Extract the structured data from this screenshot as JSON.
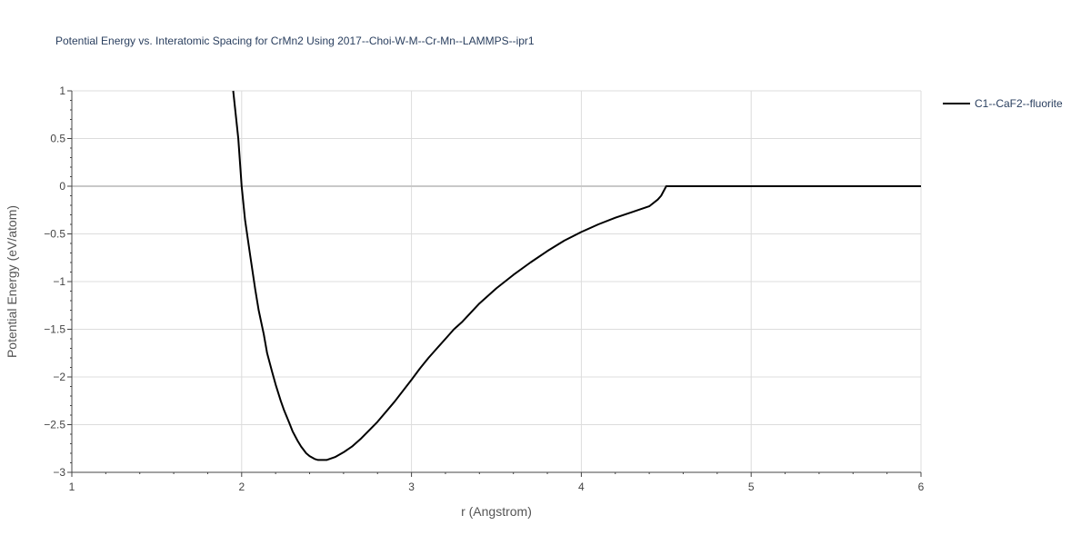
{
  "chart_data": {
    "type": "line",
    "title": "Potential Energy vs. Interatomic Spacing for CrMn2 Using 2017--Choi-W-M--Cr-Mn--LAMMPS--ipr1",
    "xlabel": "r (Angstrom)",
    "ylabel": "Potential Energy (eV/atom)",
    "xlim": [
      1,
      6
    ],
    "ylim": [
      -3,
      1
    ],
    "x_ticks": [
      "1",
      "2",
      "3",
      "4",
      "5",
      "6"
    ],
    "y_ticks": [
      "1",
      "0.5",
      "0",
      "−0.5",
      "−1",
      "−1.5",
      "−2",
      "−2.5",
      "−3"
    ],
    "y_tick_values": [
      1,
      0.5,
      0,
      -0.5,
      -1,
      -1.5,
      -2,
      -2.5,
      -3
    ],
    "grid": true,
    "legend_position": "top-right",
    "series": [
      {
        "name": "C1--CaF2--fluorite",
        "color": "#000000",
        "x": [
          1.95,
          1.98,
          2.0,
          2.02,
          2.05,
          2.08,
          2.1,
          2.13,
          2.15,
          2.18,
          2.2,
          2.23,
          2.25,
          2.28,
          2.3,
          2.33,
          2.35,
          2.38,
          2.4,
          2.43,
          2.45,
          2.48,
          2.5,
          2.55,
          2.6,
          2.65,
          2.7,
          2.8,
          2.9,
          3.0,
          3.05,
          3.1,
          3.15,
          3.2,
          3.25,
          3.3,
          3.4,
          3.5,
          3.6,
          3.7,
          3.8,
          3.9,
          4.0,
          4.1,
          4.2,
          4.3,
          4.4,
          4.45,
          4.47,
          4.5,
          4.6,
          5.0,
          5.5,
          6.0
        ],
        "y": [
          1.0,
          0.5,
          0.0,
          -0.35,
          -0.72,
          -1.08,
          -1.3,
          -1.55,
          -1.75,
          -1.95,
          -2.08,
          -2.25,
          -2.35,
          -2.48,
          -2.57,
          -2.67,
          -2.73,
          -2.8,
          -2.83,
          -2.86,
          -2.87,
          -2.87,
          -2.87,
          -2.84,
          -2.79,
          -2.73,
          -2.65,
          -2.47,
          -2.26,
          -2.03,
          -1.91,
          -1.8,
          -1.7,
          -1.6,
          -1.5,
          -1.42,
          -1.23,
          -1.07,
          -0.93,
          -0.8,
          -0.68,
          -0.57,
          -0.48,
          -0.4,
          -0.33,
          -0.27,
          -0.21,
          -0.14,
          -0.1,
          0.0,
          0.0,
          0.0,
          0.0,
          0.0
        ]
      }
    ]
  }
}
